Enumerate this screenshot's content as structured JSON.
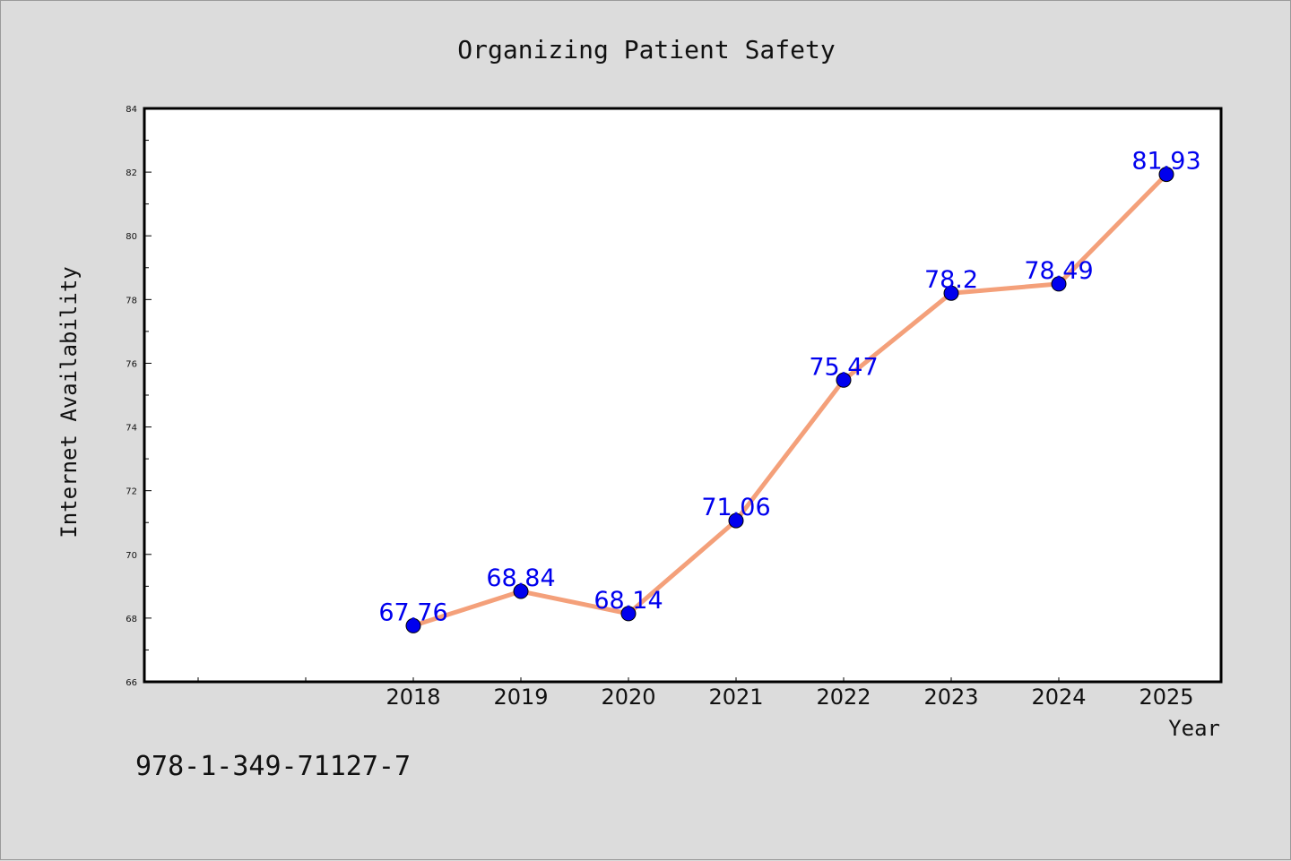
{
  "chart_data": {
    "type": "line",
    "title": "Organizing Patient Safety",
    "xlabel": "Year",
    "ylabel": "Internet Availability",
    "categories": [
      "2018",
      "2019",
      "2020",
      "2021",
      "2022",
      "2023",
      "2024",
      "2025"
    ],
    "values": [
      67.76,
      68.84,
      68.14,
      71.06,
      75.47,
      78.2,
      78.49,
      81.93
    ],
    "data_labels": [
      "67.76",
      "68.84",
      "68.14",
      "71.06",
      "75.47",
      "78.2",
      "78.49",
      "81.93"
    ],
    "ylim": [
      66,
      84
    ],
    "yticks": [
      "66",
      "68",
      "70",
      "72",
      "74",
      "76",
      "78",
      "80",
      "82",
      "84"
    ],
    "grid": false,
    "line_color": "#f4a07a",
    "marker_color": "#0000ee",
    "label_color": "#0000ee"
  },
  "footer": {
    "isbn": "978-1-349-71127-7"
  }
}
